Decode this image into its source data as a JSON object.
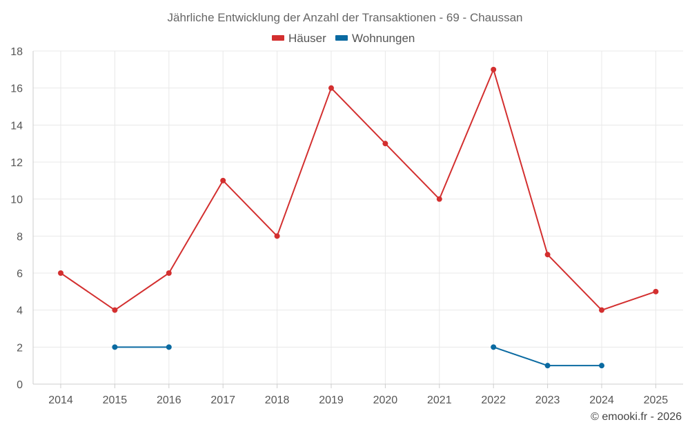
{
  "chart_data": {
    "type": "line",
    "title": "Jährliche Entwicklung der Anzahl der Transaktionen - 69 - Chaussan",
    "categories": [
      "2014",
      "2015",
      "2016",
      "2017",
      "2018",
      "2019",
      "2020",
      "2021",
      "2022",
      "2023",
      "2024",
      "2025"
    ],
    "ylim": [
      0,
      18
    ],
    "yticks": [
      0,
      2,
      4,
      6,
      8,
      10,
      12,
      14,
      16,
      18
    ],
    "grid": true,
    "legend_position": "top-center",
    "series": [
      {
        "name": "Häuser",
        "color": "#d32f2f",
        "values": [
          6,
          4,
          6,
          11,
          8,
          16,
          13,
          10,
          17,
          7,
          4,
          5
        ]
      },
      {
        "name": "Wohnungen",
        "color": "#0a6aa1",
        "values": [
          null,
          2,
          2,
          null,
          null,
          null,
          null,
          null,
          2,
          1,
          1,
          null
        ]
      }
    ],
    "credit": "© emooki.fr - 2026"
  }
}
